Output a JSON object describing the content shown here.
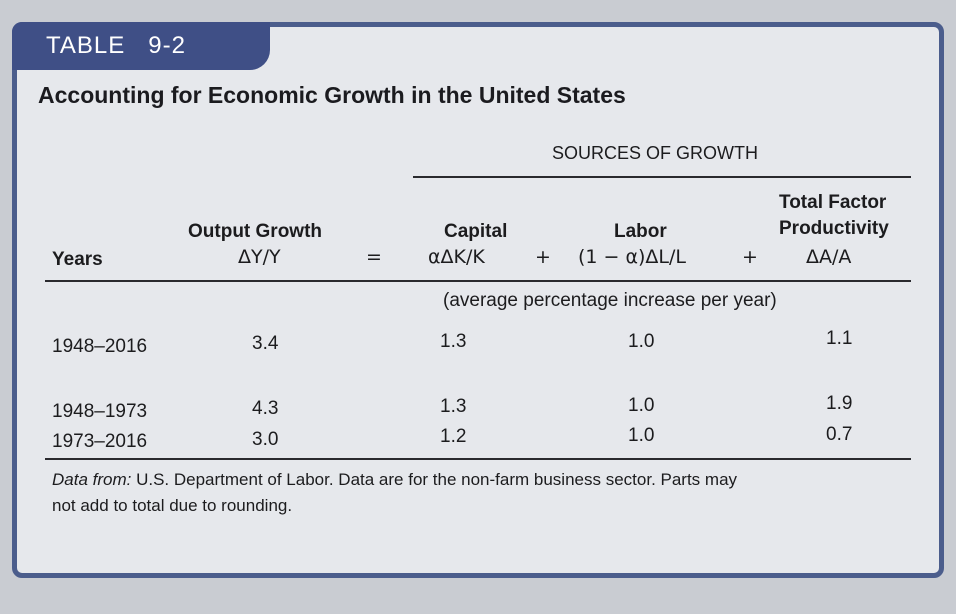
{
  "table": {
    "tag": "TABLE   9-2",
    "title": "Accounting for Economic Growth in the United States",
    "sources_header": "SOURCES OF GROWTH",
    "columns": {
      "years": "Years",
      "output_label": "Output Growth",
      "output_formula": "ΔY/Y",
      "equals": "=",
      "capital_label": "Capital",
      "capital_formula": "αΔK/K",
      "plus1": "+",
      "labor_label": "Labor",
      "labor_formula": "(1 − α)ΔL/L",
      "plus2": "+",
      "tfp_label_line1": "Total Factor",
      "tfp_label_line2": "Productivity",
      "tfp_formula": "ΔA/A"
    },
    "units_note": "(average percentage increase per year)",
    "rows": [
      {
        "years": "1948–2016",
        "output": "3.4",
        "capital": "1.3",
        "labor": "1.0",
        "tfp": "1.1"
      },
      {
        "years": "1948–1973",
        "output": "4.3",
        "capital": "1.3",
        "labor": "1.0",
        "tfp": "1.9"
      },
      {
        "years": "1973–2016",
        "output": "3.0",
        "capital": "1.2",
        "labor": "1.0",
        "tfp": "0.7"
      }
    ],
    "source_label": "Data from:",
    "source_line1": " U.S. Department of Labor. Data are for the non-farm business sector. Parts may",
    "source_line2": "not add to total due to rounding."
  }
}
